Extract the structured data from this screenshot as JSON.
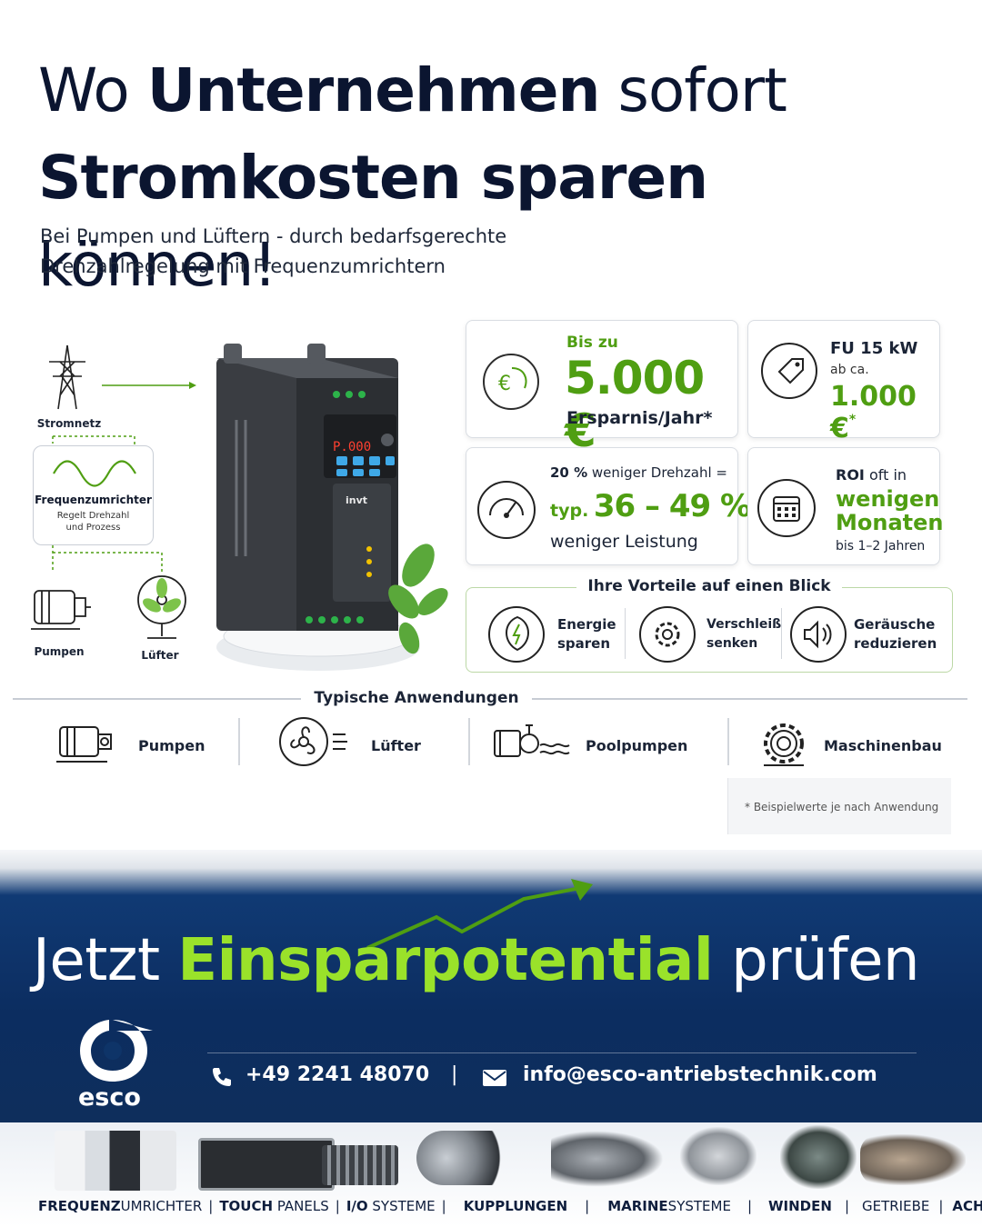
{
  "headline": {
    "line1_light": "Wo ",
    "line1_bold": "Unternehmen",
    "line1_rest": " sofort",
    "line2_bold": "Stromkosten sparen",
    "line2_rest": " können!"
  },
  "subtitle": {
    "line1": "Bei Pumpen und Lüftern -  durch bedarfsgerechte",
    "line2": "Drehzahlregelung mit Frequenzumrichtern"
  },
  "diagram": {
    "grid_label": "Stromnetz",
    "fu_title": "Frequenzumrichter",
    "fu_sub": "Regelt Drehzahl\nund Prozess",
    "pump_label": "Pumpen",
    "fan_label": "Lüfter"
  },
  "device": {
    "brand": "invt",
    "display": "P.000"
  },
  "cards": {
    "savings": {
      "pre": "Bis zu",
      "value": "5.000 €",
      "post": "Ersparnis/Jahr*"
    },
    "price": {
      "title": "FU 15 kW",
      "pre": "ab ca.",
      "value": "1.000 €",
      "star": "*"
    },
    "speed": {
      "pct": "20 %",
      "pct_text": " weniger Drehzahl =",
      "typ": "typ.",
      "range": "36 – 49 %",
      "post": "weniger Leistung"
    },
    "roi": {
      "roi": "ROI",
      "roi_text": " oft in",
      "value1": "wenigen",
      "value2": "Monaten",
      "post": "bis 1–2 Jahren"
    }
  },
  "benefits": {
    "title": "Ihre Vorteile auf einen Blick",
    "items": [
      {
        "l1": "Energie",
        "l2": "sparen"
      },
      {
        "l1": "Verschleiß",
        "l2": "senken"
      },
      {
        "l1": "Geräusche",
        "l2": "reduzieren"
      }
    ]
  },
  "applications": {
    "title": "Typische Anwendungen",
    "items": [
      "Pumpen",
      "Lüfter",
      "Poolpumpen",
      "Maschinenbau"
    ]
  },
  "note": "* Beispielwerte je nach Anwendung",
  "cta": {
    "pre": "Jetzt ",
    "highlight": "Einsparpotential",
    "post": " prüfen"
  },
  "contact": {
    "logo_text": "esco",
    "phone": "+49 2241 48070",
    "divider": "|",
    "email": "info@esco-antriebstechnik.com"
  },
  "footer": [
    {
      "bold": "FREQUENZ",
      "light": "UMRICHTER"
    },
    {
      "bold": "TOUCH",
      "light": " PANELS"
    },
    {
      "bold": "I/O",
      "light": " SYSTEME"
    },
    {
      "bold": "KUPPLUNGEN",
      "light": ""
    },
    {
      "bold": "MARINE",
      "light": "SYSTEME"
    },
    {
      "bold": "WINDEN",
      "light": ""
    },
    {
      "bold": "",
      "light": "GETRIEBE"
    },
    {
      "bold": "ACHSEN",
      "light": ""
    }
  ],
  "colors": {
    "accent_green": "#4f9e12",
    "cta_green": "#9ae22a",
    "navy": "#0c2d60",
    "text_dark": "#0b1530"
  }
}
